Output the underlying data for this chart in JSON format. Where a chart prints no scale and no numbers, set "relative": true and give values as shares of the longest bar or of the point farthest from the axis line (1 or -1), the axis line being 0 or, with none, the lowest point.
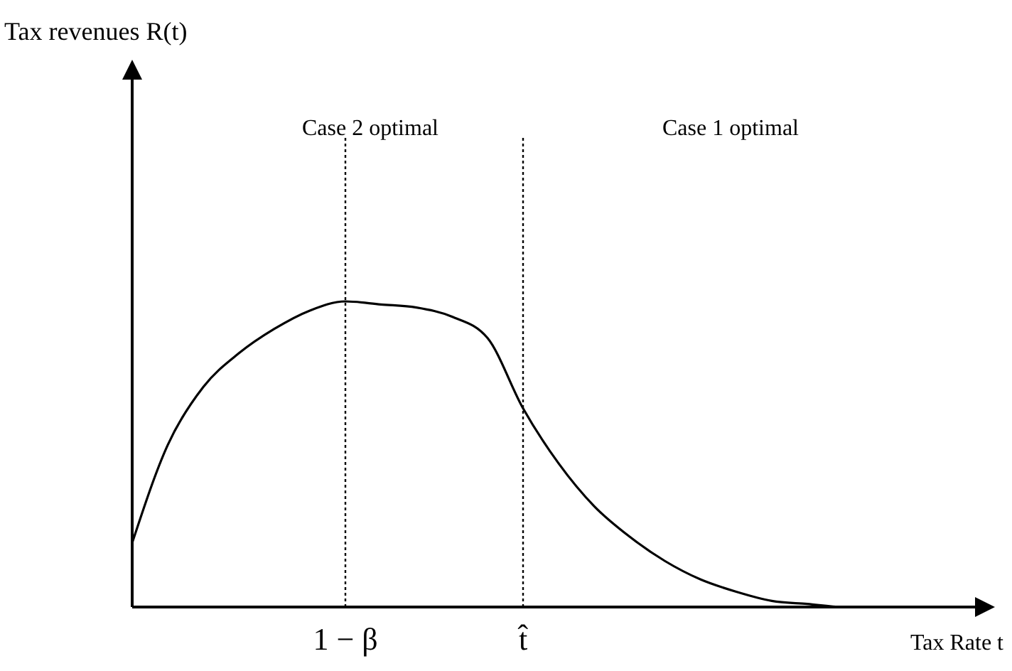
{
  "chart_data": {
    "type": "line",
    "relative": true,
    "xlabel": "Tax Rate t",
    "categories": [
      null,
      null,
      null,
      null,
      null,
      null,
      "1 − β",
      null,
      null,
      null,
      null,
      "t̂",
      null,
      null,
      null,
      null,
      null,
      null,
      null,
      null,
      null,
      null,
      null,
      null,
      null
    ],
    "series": [
      {
        "color": "#000000",
        "values": [
          0.21,
          0.53,
          0.72,
          0.83,
          0.91,
          0.97,
          1.0,
          0.99,
          0.98,
          0.95,
          0.88,
          0.65,
          0.47,
          0.33,
          0.23,
          0.15,
          0.09,
          0.05,
          0.02,
          0.01,
          0,
          0,
          null,
          null,
          null
        ]
      }
    ],
    "ref_lines": [
      {
        "axis": "x",
        "value": "1 − β",
        "line_style": "dotted"
      },
      {
        "axis": "x",
        "value": "t̂",
        "line_style": "dotted"
      }
    ],
    "annotations": [
      "Tax revenues R(t)",
      "Case 2 optimal",
      "Case 1 optimal"
    ],
    "line_style": "solid"
  }
}
